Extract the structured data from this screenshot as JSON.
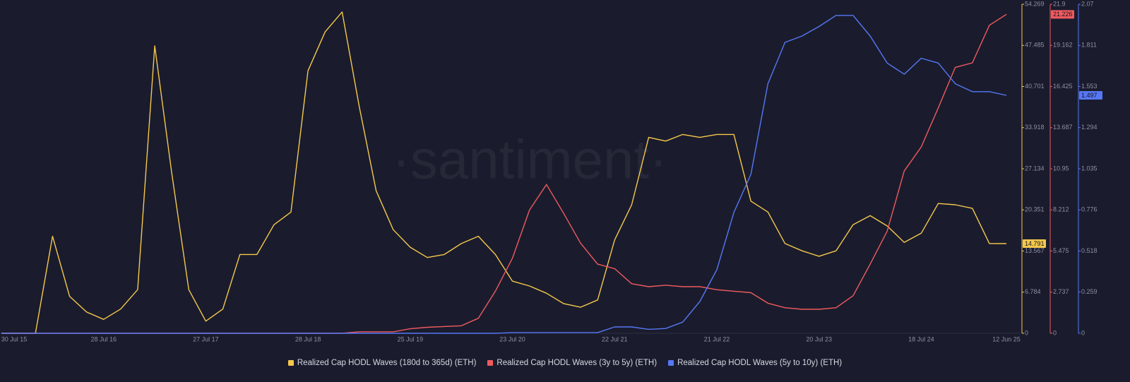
{
  "chart_data": {
    "type": "line",
    "watermark": "·santiment·",
    "legend": "bottom",
    "categories": [
      "30 Jul 15",
      null,
      null,
      null,
      null,
      null,
      "28 Jul 16",
      null,
      null,
      null,
      null,
      null,
      "27 Jul 17",
      null,
      null,
      null,
      null,
      null,
      "28 Jul 18",
      null,
      null,
      null,
      null,
      null,
      "25 Jul 19",
      null,
      null,
      null,
      null,
      null,
      "23 Jul 20",
      null,
      null,
      null,
      null,
      null,
      "22 Jul 21",
      null,
      null,
      null,
      null,
      null,
      "21 Jul 22",
      null,
      null,
      null,
      null,
      null,
      "20 Jul 23",
      null,
      null,
      null,
      null,
      null,
      "18 Jul 24",
      null,
      null,
      null,
      null,
      "12 Jun 25"
    ],
    "ylim": [
      0,
      54.269
    ],
    "yticks": [
      0,
      6.784,
      13.567,
      20.351,
      27.134,
      33.918,
      40.701,
      47.485,
      54.269
    ],
    "y2lim": [
      0,
      21.9
    ],
    "y2ticks": [
      0,
      2.737,
      5.475,
      8.212,
      10.95,
      13.687,
      16.425,
      19.162,
      21.9
    ],
    "y3lim": [
      0,
      2.07
    ],
    "y3ticks": [
      0,
      0.259,
      0.518,
      0.776,
      1.035,
      1.294,
      1.553,
      1.811,
      2.07
    ],
    "series": [
      {
        "name": "Realized Cap HODL Waves (180d to 365d) (ETH)",
        "color": "#f5c84c",
        "axis": "y",
        "values": [
          0,
          0,
          0,
          16.0,
          6.1,
          3.5,
          2.3,
          4.0,
          7.2,
          47.4,
          26.4,
          7.2,
          2.0,
          4.0,
          13.0,
          13.0,
          17.9,
          20.0,
          43.3,
          49.7,
          53.0,
          37.5,
          23.5,
          17.1,
          14.2,
          12.5,
          13.0,
          14.8,
          16.0,
          13.0,
          8.6,
          7.8,
          6.6,
          4.9,
          4.3,
          5.5,
          15.4,
          21.2,
          32.3,
          31.7,
          32.8,
          32.3,
          32.8,
          32.8,
          21.8,
          20.0,
          14.8,
          13.6,
          12.7,
          13.6,
          17.9,
          19.4,
          17.7,
          15.0,
          16.5,
          21.4,
          21.2,
          20.6,
          14.8,
          14.791
        ],
        "value_labels": [
          null,
          null,
          null,
          null,
          null,
          null,
          null,
          null,
          null,
          null,
          null,
          null,
          null,
          null,
          null,
          null,
          null,
          null,
          null,
          null,
          null,
          null,
          null,
          null,
          null,
          null,
          null,
          null,
          null,
          null,
          null,
          null,
          null,
          null,
          null,
          null,
          null,
          null,
          null,
          null,
          null,
          null,
          null,
          null,
          null,
          null,
          null,
          null,
          null,
          null,
          null,
          null,
          null,
          null,
          null,
          null,
          null,
          null,
          null,
          "14.791"
        ]
      },
      {
        "name": "Realized Cap HODL Waves (3y to 5y) (ETH)",
        "color": "#f05a5f",
        "axis": "y2",
        "values": [
          0,
          0,
          0,
          0,
          0,
          0,
          0,
          0,
          0,
          0,
          0,
          0,
          0,
          0,
          0,
          0,
          0,
          0,
          0,
          0,
          0,
          0.1,
          0.1,
          0.1,
          0.3,
          0.4,
          0.45,
          0.5,
          1.0,
          2.8,
          5.0,
          8.2,
          9.9,
          8.0,
          6.0,
          4.6,
          4.3,
          3.3,
          3.1,
          3.2,
          3.1,
          3.1,
          2.9,
          2.8,
          2.7,
          2.0,
          1.7,
          1.6,
          1.6,
          1.7,
          2.5,
          4.6,
          6.8,
          10.8,
          12.4,
          15.0,
          17.7,
          18.0,
          20.5,
          21.226
        ],
        "value_labels": [
          null,
          null,
          null,
          null,
          null,
          null,
          null,
          null,
          null,
          null,
          null,
          null,
          null,
          null,
          null,
          null,
          null,
          null,
          null,
          null,
          null,
          null,
          null,
          null,
          null,
          null,
          null,
          null,
          null,
          null,
          null,
          null,
          null,
          null,
          null,
          null,
          null,
          null,
          null,
          null,
          null,
          null,
          null,
          null,
          null,
          null,
          null,
          null,
          null,
          null,
          null,
          null,
          null,
          null,
          null,
          null,
          null,
          null,
          null,
          "21.226"
        ]
      },
      {
        "name": "Realized Cap HODL Waves (5y to 10y) (ETH)",
        "color": "#5677f5",
        "axis": "y3",
        "values": [
          0,
          0,
          0,
          0,
          0,
          0,
          0,
          0,
          0,
          0,
          0,
          0,
          0,
          0,
          0,
          0,
          0,
          0,
          0,
          0,
          0,
          0,
          0,
          0,
          0,
          0,
          0,
          0,
          0,
          0,
          0.004,
          0.004,
          0.004,
          0.004,
          0.004,
          0.004,
          0.04,
          0.04,
          0.025,
          0.03,
          0.07,
          0.2,
          0.4,
          0.76,
          1.0,
          1.57,
          1.83,
          1.87,
          1.93,
          2.0,
          2.0,
          1.87,
          1.7,
          1.63,
          1.73,
          1.7,
          1.57,
          1.52,
          1.52,
          1.497
        ],
        "value_labels": [
          null,
          null,
          null,
          null,
          null,
          null,
          null,
          null,
          null,
          null,
          null,
          null,
          null,
          null,
          null,
          null,
          null,
          null,
          null,
          null,
          null,
          null,
          null,
          null,
          null,
          null,
          null,
          null,
          null,
          null,
          null,
          null,
          null,
          null,
          null,
          null,
          null,
          null,
          null,
          null,
          null,
          null,
          null,
          null,
          null,
          null,
          null,
          null,
          null,
          null,
          null,
          null,
          null,
          null,
          null,
          null,
          null,
          null,
          null,
          "1.497"
        ]
      }
    ]
  }
}
